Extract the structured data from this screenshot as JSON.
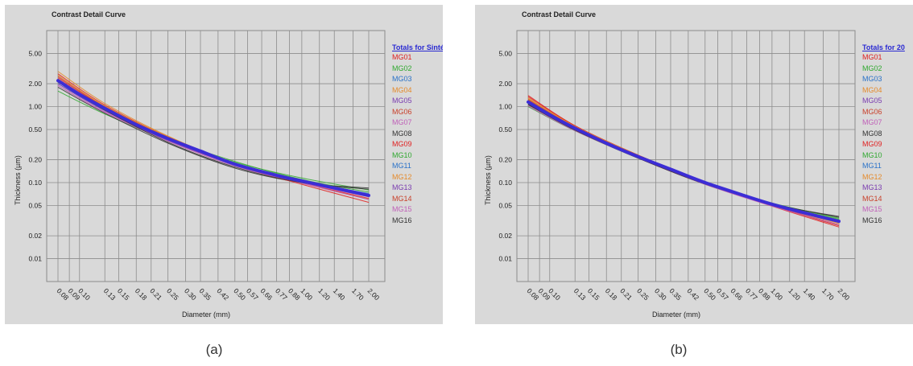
{
  "captions": [
    "(a)",
    "(b)"
  ],
  "colors": {
    "background": "#d9d9d9",
    "grid": "#8c8c8c",
    "total_curve": "#3c2dd6"
  },
  "legend_series": [
    {
      "name": "MG01",
      "color": "#e02020"
    },
    {
      "name": "MG02",
      "color": "#2fa82f"
    },
    {
      "name": "MG03",
      "color": "#2a72c8"
    },
    {
      "name": "MG04",
      "color": "#e58a2a"
    },
    {
      "name": "MG05",
      "color": "#7a3cb0"
    },
    {
      "name": "MG06",
      "color": "#c8402a"
    },
    {
      "name": "MG07",
      "color": "#c060b8"
    },
    {
      "name": "MG08",
      "color": "#333333"
    },
    {
      "name": "MG09",
      "color": "#e02020"
    },
    {
      "name": "MG10",
      "color": "#2fa82f"
    },
    {
      "name": "MG11",
      "color": "#2a72c8"
    },
    {
      "name": "MG12",
      "color": "#e58a2a"
    },
    {
      "name": "MG13",
      "color": "#7a3cb0"
    },
    {
      "name": "MG14",
      "color": "#c8402a"
    },
    {
      "name": "MG15",
      "color": "#c060b8"
    },
    {
      "name": "MG16",
      "color": "#333333"
    }
  ],
  "chart_data": [
    {
      "type": "line",
      "title": "Contrast Detail Curve",
      "xlabel": "Diameter (mm)",
      "ylabel": "Thickness (µm)",
      "x_ticks": [
        "0.08",
        "0.09",
        "0.10",
        "0.13",
        "0.15",
        "0.18",
        "0.21",
        "0.25",
        "0.30",
        "0.35",
        "0.42",
        "0.50",
        "0.57",
        "0.66",
        "0.77",
        "0.88",
        "1.00",
        "1.20",
        "1.40",
        "1.70",
        "2.00"
      ],
      "y_ticks": [
        "5.00",
        "2.00",
        "1.00",
        "0.50",
        "0.20",
        "0.10",
        "0.05",
        "0.02",
        "0.01"
      ],
      "y_scale": "log",
      "grid": true,
      "legend_title": "Totals for Sintética",
      "legend_position": "right",
      "total_curve": {
        "x": [
          0.08,
          0.1,
          0.13,
          0.18,
          0.25,
          0.35,
          0.5,
          0.77,
          1.0,
          1.4,
          2.0
        ],
        "y": [
          2.2,
          1.45,
          0.95,
          0.58,
          0.38,
          0.26,
          0.175,
          0.125,
          0.105,
          0.085,
          0.068
        ]
      },
      "series": [
        {
          "name": "MG01",
          "x": [
            0.08,
            0.13,
            0.25,
            0.5,
            1.0,
            2.0
          ],
          "y": [
            2.7,
            1.05,
            0.4,
            0.175,
            0.1,
            0.062
          ]
        },
        {
          "name": "MG02",
          "x": [
            0.08,
            0.13,
            0.25,
            0.5,
            1.0,
            2.0
          ],
          "y": [
            1.6,
            0.8,
            0.36,
            0.185,
            0.115,
            0.08
          ]
        },
        {
          "name": "MG03",
          "x": [
            0.08,
            0.13,
            0.25,
            0.5,
            1.0,
            2.0
          ],
          "y": [
            2.0,
            0.9,
            0.37,
            0.17,
            0.105,
            0.07
          ]
        },
        {
          "name": "MG04",
          "x": [
            0.08,
            0.13,
            0.25,
            0.5,
            1.0,
            2.0
          ],
          "y": [
            2.9,
            1.1,
            0.41,
            0.18,
            0.105,
            0.065
          ]
        },
        {
          "name": "MG05",
          "x": [
            0.08,
            0.13,
            0.25,
            0.5,
            1.0,
            2.0
          ],
          "y": [
            2.3,
            0.95,
            0.38,
            0.175,
            0.105,
            0.07
          ]
        },
        {
          "name": "MG06",
          "x": [
            0.08,
            0.13,
            0.25,
            0.5,
            1.0,
            2.0
          ],
          "y": [
            2.5,
            1.0,
            0.4,
            0.18,
            0.1,
            0.06
          ]
        },
        {
          "name": "MG07",
          "x": [
            0.08,
            0.13,
            0.25,
            0.5,
            1.0,
            2.0
          ],
          "y": [
            1.9,
            0.85,
            0.36,
            0.17,
            0.1,
            0.065
          ]
        },
        {
          "name": "MG08",
          "x": [
            0.08,
            0.13,
            0.25,
            0.5,
            1.0,
            2.0
          ],
          "y": [
            1.8,
            0.82,
            0.33,
            0.155,
            0.1,
            0.085
          ]
        },
        {
          "name": "MG09",
          "x": [
            0.08,
            0.13,
            0.25,
            0.5,
            1.0,
            2.0
          ],
          "y": [
            2.4,
            0.98,
            0.39,
            0.17,
            0.095,
            0.055
          ]
        },
        {
          "name": "MG10",
          "x": [
            0.08,
            0.13,
            0.25,
            0.5,
            1.0,
            2.0
          ],
          "y": [
            2.1,
            0.92,
            0.38,
            0.19,
            0.11,
            0.075
          ]
        },
        {
          "name": "MG11",
          "x": [
            0.08,
            0.13,
            0.25,
            0.5,
            1.0,
            2.0
          ],
          "y": [
            2.2,
            0.94,
            0.37,
            0.175,
            0.105,
            0.072
          ]
        },
        {
          "name": "MG12",
          "x": [
            0.08,
            0.13,
            0.25,
            0.5,
            1.0,
            2.0
          ],
          "y": [
            2.6,
            1.02,
            0.4,
            0.178,
            0.103,
            0.066
          ]
        },
        {
          "name": "MG13",
          "x": [
            0.08,
            0.13,
            0.25,
            0.5,
            1.0,
            2.0
          ],
          "y": [
            2.0,
            0.88,
            0.36,
            0.172,
            0.104,
            0.07
          ]
        },
        {
          "name": "MG14",
          "x": [
            0.08,
            0.13,
            0.25,
            0.5,
            1.0,
            2.0
          ],
          "y": [
            2.3,
            0.96,
            0.39,
            0.176,
            0.102,
            0.068
          ]
        },
        {
          "name": "MG15",
          "x": [
            0.08,
            0.13,
            0.25,
            0.5,
            1.0,
            2.0
          ],
          "y": [
            1.9,
            0.84,
            0.35,
            0.165,
            0.098,
            0.06
          ]
        },
        {
          "name": "MG16",
          "x": [
            0.08,
            0.13,
            0.25,
            0.5,
            1.0,
            2.0
          ],
          "y": [
            2.1,
            0.9,
            0.34,
            0.16,
            0.1,
            0.082
          ]
        }
      ]
    },
    {
      "type": "line",
      "title": "Contrast Detail Curve",
      "xlabel": "Diameter (mm)",
      "ylabel": "Thickness (µm)",
      "x_ticks": [
        "0.08",
        "0.09",
        "0.10",
        "0.13",
        "0.15",
        "0.18",
        "0.21",
        "0.25",
        "0.30",
        "0.35",
        "0.42",
        "0.50",
        "0.57",
        "0.66",
        "0.77",
        "0.88",
        "1.00",
        "1.20",
        "1.40",
        "1.70",
        "2.00"
      ],
      "y_ticks": [
        "5.00",
        "2.00",
        "1.00",
        "0.50",
        "0.20",
        "0.10",
        "0.05",
        "0.02",
        "0.01"
      ],
      "y_scale": "log",
      "grid": true,
      "legend_title": "Totals for 20",
      "legend_position": "right",
      "total_curve": {
        "x": [
          0.08,
          0.1,
          0.13,
          0.18,
          0.25,
          0.35,
          0.5,
          0.77,
          1.0,
          1.4,
          2.0
        ],
        "y": [
          1.15,
          0.78,
          0.52,
          0.33,
          0.22,
          0.15,
          0.1,
          0.066,
          0.052,
          0.04,
          0.031
        ]
      },
      "series": [
        {
          "name": "MG01",
          "x": [
            0.08,
            0.13,
            0.25,
            0.5,
            1.0,
            2.0
          ],
          "y": [
            1.4,
            0.56,
            0.23,
            0.1,
            0.05,
            0.027
          ]
        },
        {
          "name": "MG02",
          "x": [
            0.08,
            0.13,
            0.25,
            0.5,
            1.0,
            2.0
          ],
          "y": [
            1.0,
            0.48,
            0.21,
            0.1,
            0.053,
            0.033
          ]
        },
        {
          "name": "MG03",
          "x": [
            0.08,
            0.13,
            0.25,
            0.5,
            1.0,
            2.0
          ],
          "y": [
            1.1,
            0.5,
            0.22,
            0.1,
            0.052,
            0.031
          ]
        },
        {
          "name": "MG04",
          "x": [
            0.08,
            0.13,
            0.25,
            0.5,
            1.0,
            2.0
          ],
          "y": [
            1.3,
            0.55,
            0.23,
            0.1,
            0.051,
            0.029
          ]
        },
        {
          "name": "MG05",
          "x": [
            0.08,
            0.13,
            0.25,
            0.5,
            1.0,
            2.0
          ],
          "y": [
            1.2,
            0.53,
            0.22,
            0.1,
            0.052,
            0.031
          ]
        },
        {
          "name": "MG06",
          "x": [
            0.08,
            0.13,
            0.25,
            0.5,
            1.0,
            2.0
          ],
          "y": [
            1.25,
            0.54,
            0.23,
            0.1,
            0.05,
            0.028
          ]
        },
        {
          "name": "MG07",
          "x": [
            0.08,
            0.13,
            0.25,
            0.5,
            1.0,
            2.0
          ],
          "y": [
            1.05,
            0.49,
            0.21,
            0.095,
            0.05,
            0.03
          ]
        },
        {
          "name": "MG08",
          "x": [
            0.08,
            0.13,
            0.25,
            0.5,
            1.0,
            2.0
          ],
          "y": [
            1.08,
            0.5,
            0.21,
            0.095,
            0.052,
            0.036
          ]
        },
        {
          "name": "MG09",
          "x": [
            0.08,
            0.13,
            0.25,
            0.5,
            1.0,
            2.0
          ],
          "y": [
            1.35,
            0.56,
            0.23,
            0.1,
            0.049,
            0.026
          ]
        },
        {
          "name": "MG10",
          "x": [
            0.08,
            0.13,
            0.25,
            0.5,
            1.0,
            2.0
          ],
          "y": [
            1.1,
            0.51,
            0.22,
            0.1,
            0.054,
            0.034
          ]
        },
        {
          "name": "MG11",
          "x": [
            0.08,
            0.13,
            0.25,
            0.5,
            1.0,
            2.0
          ],
          "y": [
            1.15,
            0.52,
            0.22,
            0.1,
            0.052,
            0.032
          ]
        },
        {
          "name": "MG12",
          "x": [
            0.08,
            0.13,
            0.25,
            0.5,
            1.0,
            2.0
          ],
          "y": [
            1.28,
            0.55,
            0.23,
            0.1,
            0.051,
            0.03
          ]
        },
        {
          "name": "MG13",
          "x": [
            0.08,
            0.13,
            0.25,
            0.5,
            1.0,
            2.0
          ],
          "y": [
            1.12,
            0.51,
            0.22,
            0.098,
            0.051,
            0.031
          ]
        },
        {
          "name": "MG14",
          "x": [
            0.08,
            0.13,
            0.25,
            0.5,
            1.0,
            2.0
          ],
          "y": [
            1.22,
            0.53,
            0.22,
            0.1,
            0.051,
            0.03
          ]
        },
        {
          "name": "MG15",
          "x": [
            0.08,
            0.13,
            0.25,
            0.5,
            1.0,
            2.0
          ],
          "y": [
            1.02,
            0.48,
            0.21,
            0.095,
            0.049,
            0.028
          ]
        },
        {
          "name": "MG16",
          "x": [
            0.08,
            0.13,
            0.25,
            0.5,
            1.0,
            2.0
          ],
          "y": [
            1.06,
            0.49,
            0.21,
            0.096,
            0.053,
            0.035
          ]
        }
      ]
    }
  ]
}
